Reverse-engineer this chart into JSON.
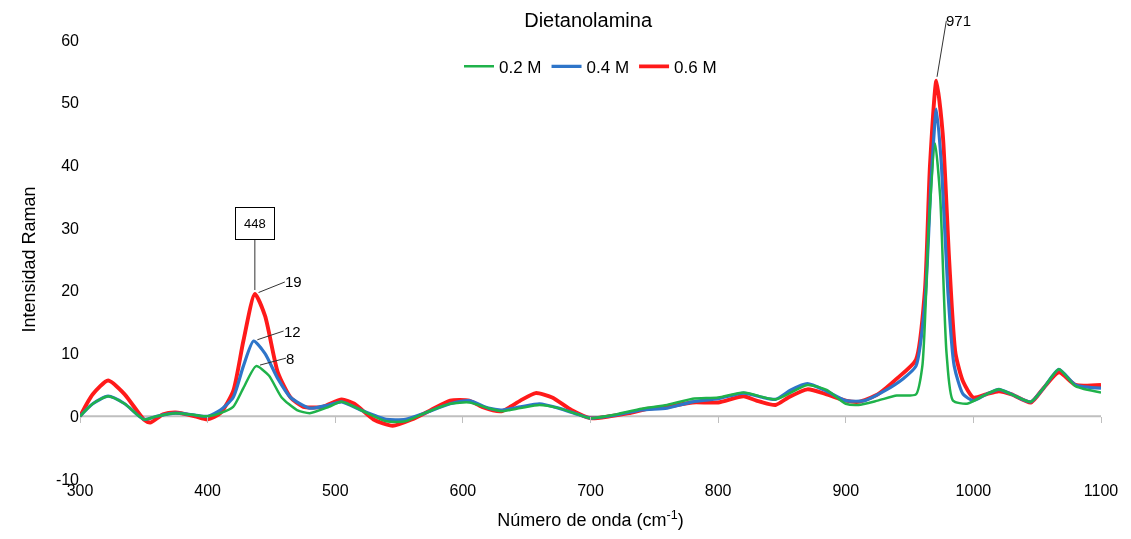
{
  "chart_data": {
    "type": "line",
    "title": "Dietanolamina",
    "xlabel": "Número de onda (cm$^{-1}$)",
    "ylabel": "Intensidad Raman",
    "xlim": [
      300,
      1100
    ],
    "xticks": [
      300,
      400,
      500,
      600,
      700,
      800,
      900,
      1000,
      1100
    ],
    "ylim": [
      -10,
      60
    ],
    "yticks": [
      -10,
      0,
      10,
      20,
      30,
      40,
      50,
      60
    ],
    "grid": false,
    "legend": "top",
    "ref_lines": [
      {
        "axis": "y",
        "value": 0,
        "color": "#bfbfbf",
        "line_style": "solid"
      }
    ],
    "marker": "none",
    "line_style": "solid",
    "series": [
      {
        "name": "0.2 M",
        "color": "#1fb24a",
        "x": [
          300,
          310,
          322,
          335,
          350,
          360,
          375,
          390,
          400,
          410,
          420,
          428,
          438,
          448,
          458,
          470,
          480,
          495,
          505,
          520,
          540,
          555,
          570,
          590,
          605,
          620,
          630,
          645,
          660,
          675,
          690,
          700,
          720,
          740,
          760,
          780,
          800,
          820,
          845,
          870,
          885,
          900,
          910,
          925,
          940,
          955,
          960,
          965,
          970,
          974,
          979,
          984,
          995,
          1010,
          1020,
          1030,
          1045,
          1055,
          1067,
          1080,
          1100
        ],
        "values": [
          0,
          2,
          3.2,
          2,
          -0.5,
          0,
          0.5,
          0.2,
          0,
          0.5,
          1.5,
          4.5,
          8,
          6.5,
          3,
          1,
          0.5,
          1.5,
          2.3,
          1,
          -0.8,
          -0.8,
          0.5,
          2,
          2.2,
          1.3,
          0.8,
          1.3,
          1.8,
          1.3,
          0.3,
          -0.3,
          0.3,
          1.2,
          1.8,
          2.8,
          3,
          3.8,
          2.7,
          5,
          4.2,
          2,
          1.8,
          2.5,
          3.3,
          3.5,
          8,
          30,
          43.5,
          35,
          10,
          2.5,
          2,
          3.5,
          4.3,
          3.5,
          2.3,
          4.5,
          7.5,
          4.8,
          3.8
        ]
      },
      {
        "name": "0.4 M",
        "color": "#2e75c9",
        "x": [
          300,
          310,
          322,
          335,
          350,
          360,
          375,
          390,
          400,
          410,
          420,
          428,
          436,
          445,
          455,
          465,
          480,
          495,
          505,
          520,
          540,
          555,
          570,
          590,
          605,
          620,
          630,
          645,
          660,
          675,
          690,
          700,
          720,
          740,
          760,
          780,
          800,
          820,
          835,
          845,
          857,
          870,
          885,
          900,
          915,
          930,
          945,
          955,
          962,
          967,
          971,
          975,
          980,
          985,
          992,
          1000,
          1010,
          1020,
          1030,
          1045,
          1055,
          1067,
          1080,
          1100
        ],
        "values": [
          0,
          2,
          3.2,
          2,
          -0.5,
          0,
          0.5,
          0.2,
          0,
          1,
          3,
          8,
          12,
          10,
          6,
          3,
          1.3,
          1.8,
          2.3,
          1,
          -0.5,
          -0.5,
          0.5,
          2,
          2.5,
          1.3,
          1,
          1.5,
          2,
          1.3,
          0.3,
          -0.3,
          0.2,
          1,
          1.3,
          2.3,
          2.8,
          3.7,
          3,
          2.7,
          4.2,
          5.2,
          4,
          2.5,
          2.5,
          4,
          6,
          8,
          18,
          38,
          49,
          40,
          20,
          8,
          3.5,
          2.5,
          3.5,
          4.3,
          3.5,
          2.3,
          4.5,
          7.5,
          5,
          4.5
        ]
      },
      {
        "name": "0.6 M",
        "color": "#ff1a1a",
        "x": [
          300,
          310,
          322,
          335,
          350,
          355,
          365,
          375,
          390,
          400,
          410,
          420,
          428,
          437,
          445,
          455,
          465,
          475,
          490,
          505,
          515,
          530,
          545,
          560,
          575,
          590,
          605,
          615,
          630,
          645,
          657,
          670,
          685,
          700,
          715,
          730,
          745,
          760,
          780,
          800,
          820,
          830,
          845,
          855,
          870,
          885,
          900,
          910,
          925,
          940,
          955,
          962,
          966,
          971,
          976,
          981,
          986,
          992,
          1000,
          1010,
          1020,
          1030,
          1045,
          1055,
          1067,
          1080,
          1100
        ],
        "values": [
          0,
          3.5,
          5.7,
          3.5,
          -0.5,
          -1,
          0.3,
          0.6,
          0,
          -0.5,
          0.5,
          4,
          12,
          19.5,
          16,
          7,
          3,
          1.5,
          1.5,
          2.7,
          2,
          -0.5,
          -1.5,
          -0.5,
          1,
          2.5,
          2.5,
          1.5,
          0.8,
          2.5,
          3.7,
          3,
          1,
          -0.3,
          0,
          0.5,
          1.2,
          1.5,
          2.2,
          2.2,
          3.2,
          2.5,
          1.8,
          3,
          4.3,
          3.5,
          2.5,
          2.3,
          3.5,
          6,
          9,
          20,
          40,
          53.5,
          45,
          25,
          10,
          5.5,
          3,
          3.5,
          4,
          3.5,
          2.2,
          4.5,
          7,
          5,
          5
        ]
      }
    ],
    "annotations": [
      {
        "text": "448",
        "x": 437,
        "y": 19.5
      },
      {
        "text": "19",
        "x": 437,
        "y": 19.5
      },
      {
        "text": "12",
        "x": 436,
        "y": 12
      },
      {
        "text": "8",
        "x": 438,
        "y": 8
      },
      {
        "text": "971",
        "x": 971,
        "y": 53.5
      }
    ]
  }
}
